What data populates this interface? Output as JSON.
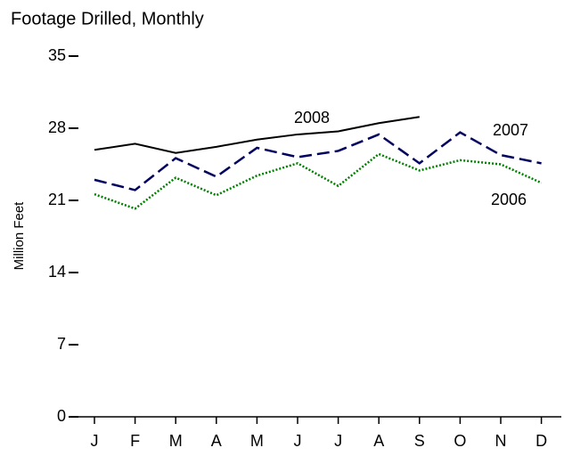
{
  "chart_data": {
    "type": "line",
    "title": "Footage Drilled, Monthly",
    "y_label": "Million Feet",
    "categories": [
      "J",
      "F",
      "M",
      "A",
      "M",
      "J",
      "J",
      "A",
      "S",
      "O",
      "N",
      "D"
    ],
    "series": [
      {
        "name": "2008",
        "color": "#000000",
        "dash": "solid",
        "values": [
          25.9,
          26.5,
          25.6,
          26.2,
          26.9,
          27.4,
          27.7,
          28.5,
          29.1,
          null,
          null,
          null
        ]
      },
      {
        "name": "2007",
        "color": "#000060",
        "dash": "dashed",
        "values": [
          23.0,
          22.0,
          25.1,
          23.3,
          26.1,
          25.2,
          25.8,
          27.4,
          24.6,
          27.6,
          25.4,
          24.6
        ]
      },
      {
        "name": "2006",
        "color": "#008000",
        "dash": "dotted",
        "values": [
          21.6,
          20.2,
          23.2,
          21.5,
          23.4,
          24.6,
          22.4,
          25.5,
          23.9,
          24.9,
          24.5,
          22.7
        ]
      }
    ],
    "ylim": [
      0,
      35
    ],
    "yticks": [
      0,
      7,
      14,
      21,
      28,
      35
    ]
  }
}
